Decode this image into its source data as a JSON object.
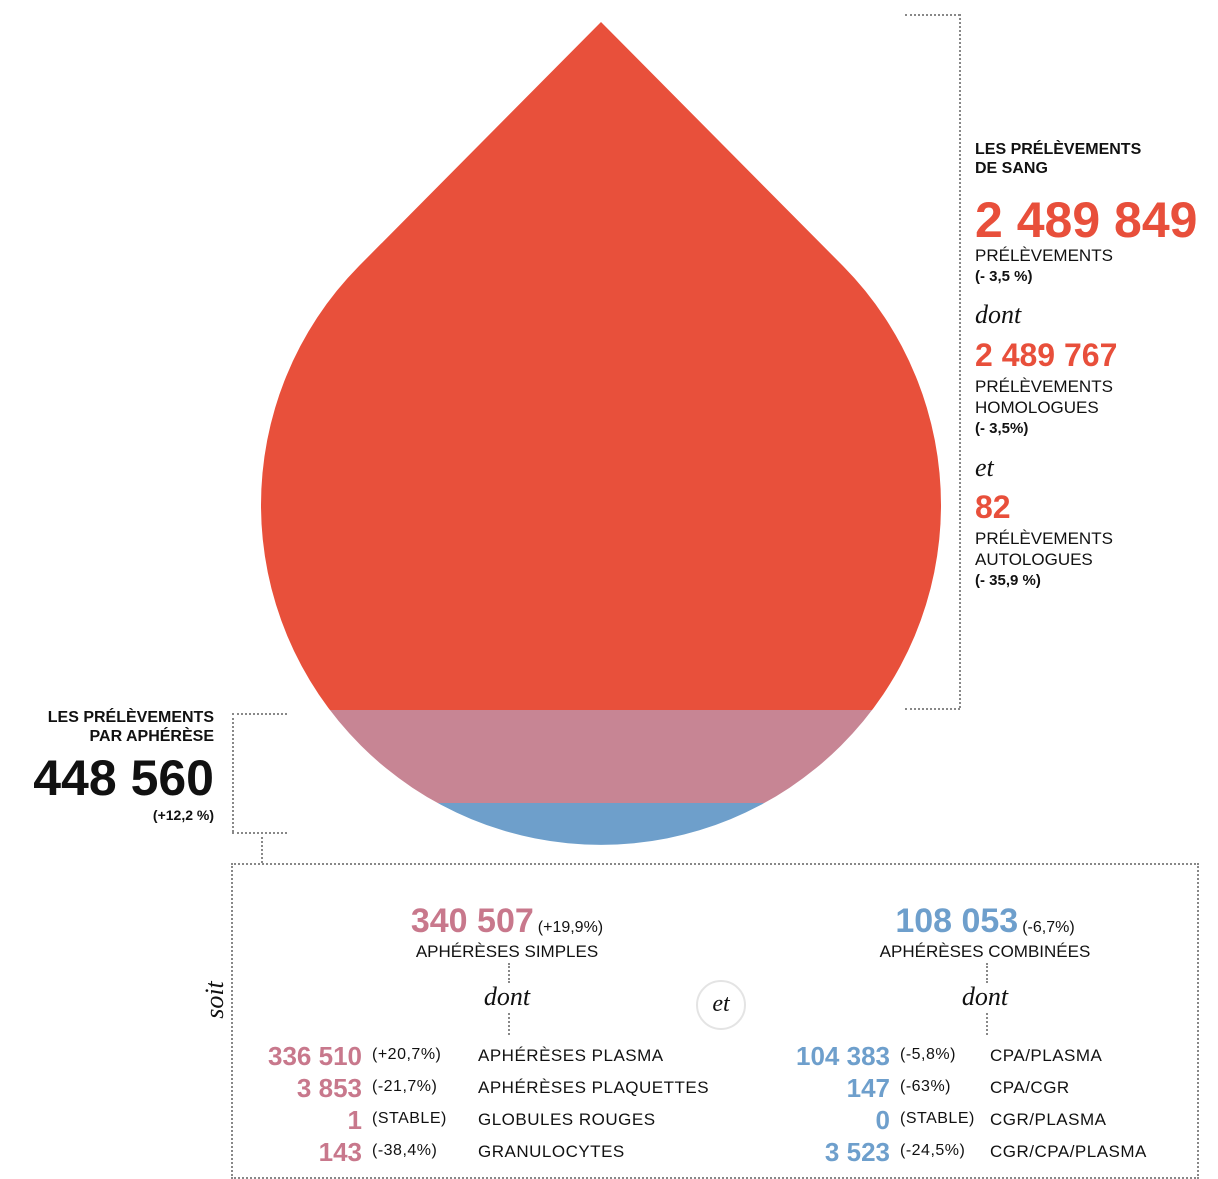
{
  "blood": {
    "title_lines": [
      "LES PRÉLÈVEMENTS",
      "DE SANG"
    ],
    "total": "2 489 849",
    "total_label": "PRÉLÈVEMENTS",
    "total_change": "(- 3,5 %)",
    "connector_1": "dont",
    "homologous": "2 489 767",
    "homologous_lines": [
      "PRÉLÈVEMENTS",
      "HOMOLOGUES",
      "(- 3,5%)"
    ],
    "connector_2": "et",
    "autologous": "82",
    "autologous_lines": [
      "PRÉLÈVEMENTS",
      "AUTOLOGUES",
      "(- 35,9 %)"
    ]
  },
  "apheresis": {
    "title_lines": [
      "LES PRÉLÈVEMENTS",
      "PAR APHÉRÈSE"
    ],
    "value": "448 560",
    "change": "(+12,2 %)"
  },
  "breakdown": {
    "soit": "soit",
    "et": "et",
    "simple": {
      "value": "340 507",
      "change": "(+19,9%)",
      "label": "APHÉRÈSES SIMPLES",
      "dont": "dont",
      "items": [
        {
          "value": "336 510",
          "change": "(+20,7%)",
          "label": "APHÉRÈSES PLASMA"
        },
        {
          "value": "3 853",
          "change": "(-21,7%)",
          "label": "APHÉRÈSES PLAQUETTES"
        },
        {
          "value": "1",
          "change": "(STABLE)",
          "label": "GLOBULES ROUGES"
        },
        {
          "value": "143",
          "change": "(-38,4%)",
          "label": "GRANULOCYTES"
        }
      ]
    },
    "combined": {
      "value": "108 053",
      "change": "(-6,7%)",
      "label": "APHÉRÈSES COMBINÉES",
      "dont": "dont",
      "items": [
        {
          "value": "104 383",
          "change": "(-5,8%)",
          "label": "CPA/PLASMA"
        },
        {
          "value": "147",
          "change": "(-63%)",
          "label": "CPA/CGR"
        },
        {
          "value": "0",
          "change": "(STABLE)",
          "label": "CGR/PLASMA"
        },
        {
          "value": "3 523",
          "change": "(-24,5%)",
          "label": "CGR/CPA/PLASMA"
        }
      ]
    }
  }
}
